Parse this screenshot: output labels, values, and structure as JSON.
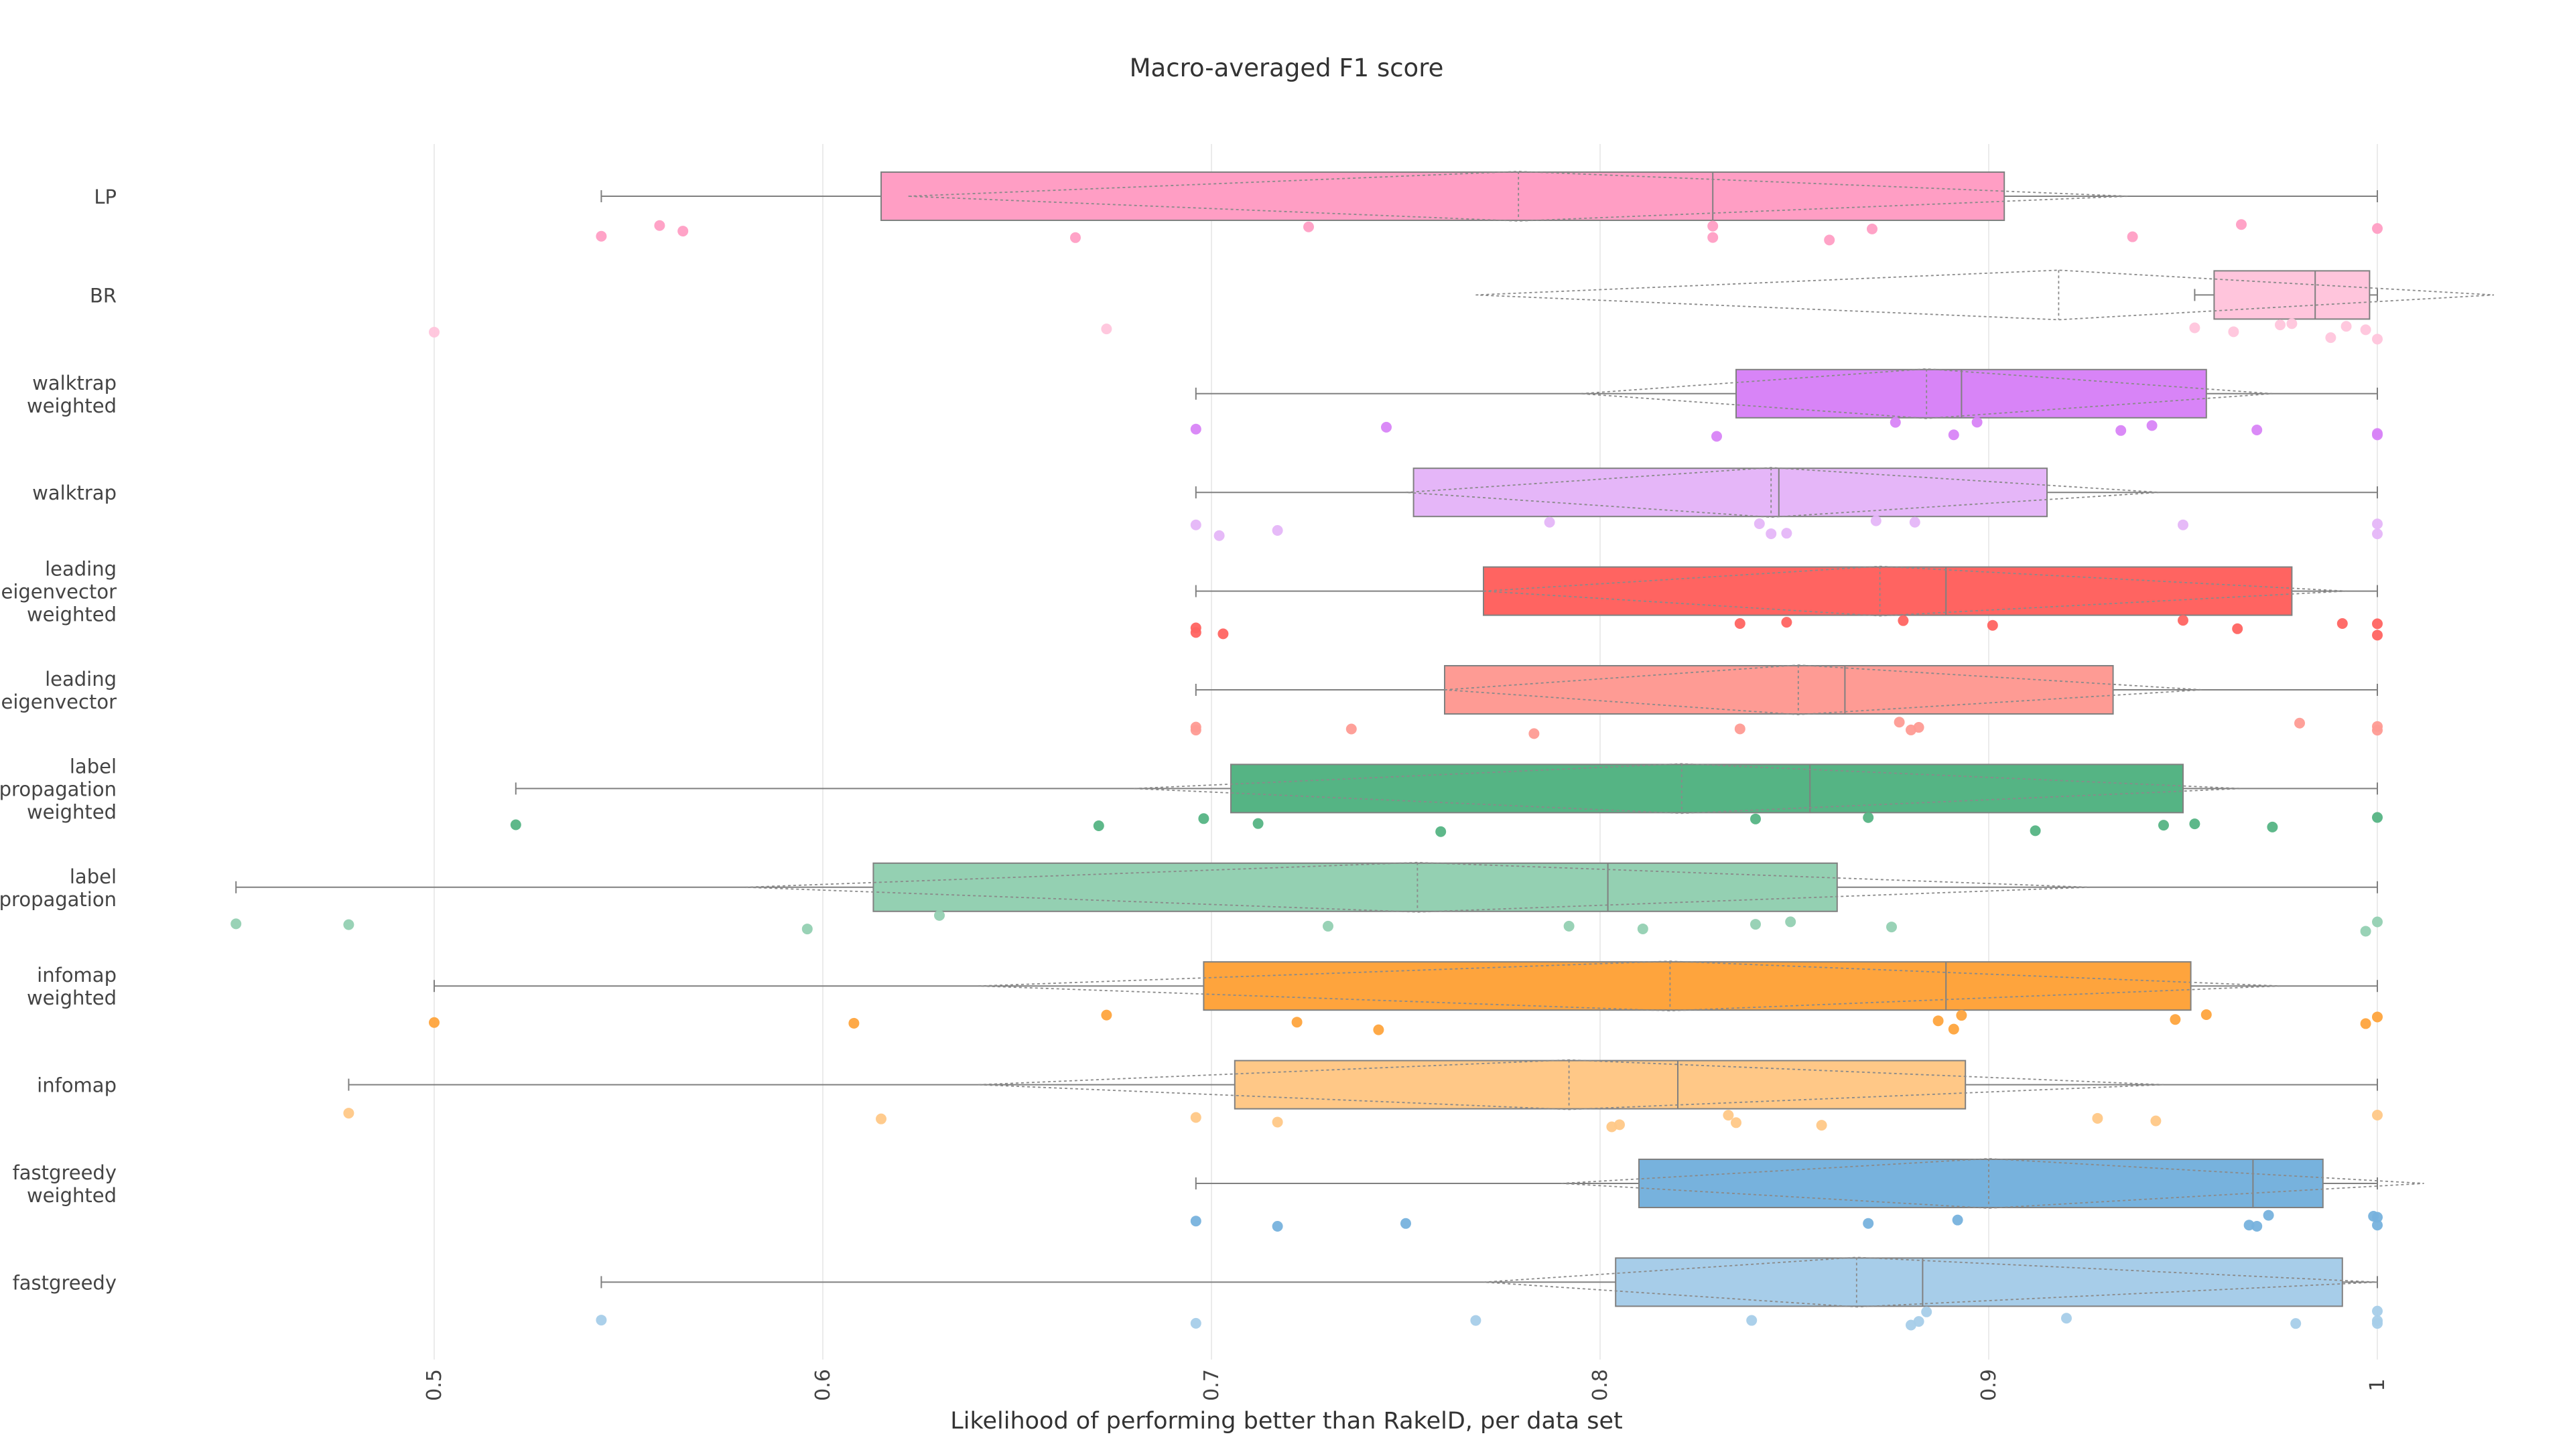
{
  "chart_data": {
    "type": "box",
    "orientation": "horizontal",
    "title": "Macro-averaged F1 score",
    "xlabel": "Likelihood of performing better than RakelD, per data set",
    "ylabel": "",
    "xlim": [
      0.425,
      1.03
    ],
    "xticks": [
      0.5,
      0.6,
      0.7,
      0.8,
      0.9,
      1
    ],
    "xtick_labels": [
      "0.5",
      "0.6",
      "0.7",
      "0.8",
      "0.9",
      "1"
    ],
    "grid": true,
    "legend": "none",
    "series": [
      {
        "label_lines": [
          "LP"
        ],
        "color": "#ff9ec4",
        "box": {
          "q1": 0.615,
          "median": 0.829,
          "q3": 0.904,
          "whisker_low": 0.543,
          "whisker_high": 1.0
        },
        "mean": 0.779,
        "sd_low": 0.622,
        "sd_high": 0.936,
        "points": [
          0.543,
          0.558,
          0.564,
          0.665,
          0.725,
          0.829,
          0.829,
          0.859,
          0.87,
          0.937,
          0.965,
          1.0
        ]
      },
      {
        "label_lines": [
          "BR"
        ],
        "color": "#ffc5dc",
        "box": {
          "q1": 0.958,
          "median": 0.984,
          "q3": 0.998,
          "whisker_low": 0.953,
          "whisker_high": 1.0
        },
        "mean": 0.918,
        "sd_low": 0.768,
        "sd_high": 1.03,
        "points": [
          0.5,
          0.673,
          0.953,
          0.963,
          0.975,
          0.978,
          0.988,
          0.992,
          0.997,
          1.0
        ]
      },
      {
        "label_lines": [
          "walktrap",
          "weighted"
        ],
        "color": "#d884f7",
        "box": {
          "q1": 0.835,
          "median": 0.893,
          "q3": 0.956,
          "whisker_low": 0.696,
          "whisker_high": 1.0
        },
        "mean": 0.884,
        "sd_low": 0.795,
        "sd_high": 0.973,
        "points": [
          0.696,
          0.745,
          0.83,
          0.876,
          0.891,
          0.897,
          0.934,
          0.942,
          0.969,
          1.0,
          1.0
        ]
      },
      {
        "label_lines": [
          "walktrap"
        ],
        "color": "#e5b6f8",
        "box": {
          "q1": 0.752,
          "median": 0.846,
          "q3": 0.915,
          "whisker_low": 0.696,
          "whisker_high": 1.0
        },
        "mean": 0.844,
        "sd_low": 0.75,
        "sd_high": 0.944,
        "points": [
          0.696,
          0.702,
          0.717,
          0.787,
          0.841,
          0.844,
          0.848,
          0.871,
          0.881,
          0.95,
          1.0,
          1.0
        ]
      },
      {
        "label_lines": [
          "leading",
          "eigenvector",
          "weighted"
        ],
        "color": "#ff6461",
        "box": {
          "q1": 0.77,
          "median": 0.889,
          "q3": 0.978,
          "whisker_low": 0.696,
          "whisker_high": 1.0
        },
        "mean": 0.872,
        "sd_low": 0.77,
        "sd_high": 0.992,
        "points": [
          0.696,
          0.696,
          0.703,
          0.836,
          0.848,
          0.878,
          0.901,
          0.95,
          0.964,
          0.991,
          1.0,
          1.0
        ]
      },
      {
        "label_lines": [
          "leading",
          "eigenvector"
        ],
        "color": "#fe9b94",
        "box": {
          "q1": 0.76,
          "median": 0.863,
          "q3": 0.932,
          "whisker_low": 0.696,
          "whisker_high": 1.0
        },
        "mean": 0.851,
        "sd_low": 0.76,
        "sd_high": 0.955,
        "points": [
          0.696,
          0.696,
          0.736,
          0.783,
          0.836,
          0.877,
          0.88,
          0.882,
          0.98,
          1.0,
          1.0
        ]
      },
      {
        "label_lines": [
          "label",
          "propagation",
          "weighted"
        ],
        "color": "#55b484",
        "box": {
          "q1": 0.705,
          "median": 0.854,
          "q3": 0.95,
          "whisker_low": 0.521,
          "whisker_high": 1.0
        },
        "mean": 0.821,
        "sd_low": 0.68,
        "sd_high": 0.965,
        "points": [
          0.521,
          0.671,
          0.698,
          0.712,
          0.759,
          0.84,
          0.869,
          0.912,
          0.945,
          0.953,
          0.973,
          1.0
        ]
      },
      {
        "label_lines": [
          "label",
          "propagation"
        ],
        "color": "#94d0b2",
        "box": {
          "q1": 0.613,
          "median": 0.802,
          "q3": 0.861,
          "whisker_low": 0.449,
          "whisker_high": 1.0
        },
        "mean": 0.753,
        "sd_low": 0.58,
        "sd_high": 0.926,
        "points": [
          0.449,
          0.478,
          0.596,
          0.63,
          0.73,
          0.792,
          0.811,
          0.84,
          0.849,
          0.875,
          0.997,
          1.0
        ]
      },
      {
        "label_lines": [
          "infomap",
          "weighted"
        ],
        "color": "#fea43d",
        "box": {
          "q1": 0.698,
          "median": 0.889,
          "q3": 0.952,
          "whisker_low": 0.5,
          "whisker_high": 1.0
        },
        "mean": 0.818,
        "sd_low": 0.64,
        "sd_high": 0.975,
        "points": [
          0.5,
          0.608,
          0.673,
          0.722,
          0.743,
          0.887,
          0.891,
          0.893,
          0.948,
          0.956,
          0.997,
          1.0
        ]
      },
      {
        "label_lines": [
          "infomap"
        ],
        "color": "#ffc887",
        "box": {
          "q1": 0.706,
          "median": 0.82,
          "q3": 0.894,
          "whisker_low": 0.478,
          "whisker_high": 1.0
        },
        "mean": 0.792,
        "sd_low": 0.64,
        "sd_high": 0.945,
        "points": [
          0.478,
          0.615,
          0.696,
          0.717,
          0.803,
          0.805,
          0.833,
          0.835,
          0.857,
          0.928,
          0.943,
          1.0
        ]
      },
      {
        "label_lines": [
          "fastgreedy",
          "weighted"
        ],
        "color": "#77b2dd",
        "box": {
          "q1": 0.81,
          "median": 0.968,
          "q3": 0.986,
          "whisker_low": 0.696,
          "whisker_high": 1.0
        },
        "mean": 0.9,
        "sd_low": 0.79,
        "sd_high": 1.012,
        "points": [
          0.696,
          0.717,
          0.75,
          0.869,
          0.892,
          0.967,
          0.969,
          0.972,
          0.999,
          1.0,
          1.0
        ]
      },
      {
        "label_lines": [
          "fastgreedy"
        ],
        "color": "#a7cde9",
        "box": {
          "q1": 0.804,
          "median": 0.883,
          "q3": 0.991,
          "whisker_low": 0.543,
          "whisker_high": 1.0
        },
        "mean": 0.866,
        "sd_low": 0.77,
        "sd_high": 1.0,
        "points": [
          0.543,
          0.696,
          0.768,
          0.839,
          0.88,
          0.882,
          0.884,
          0.92,
          0.979,
          1.0,
          1.0,
          1.0
        ]
      }
    ]
  }
}
